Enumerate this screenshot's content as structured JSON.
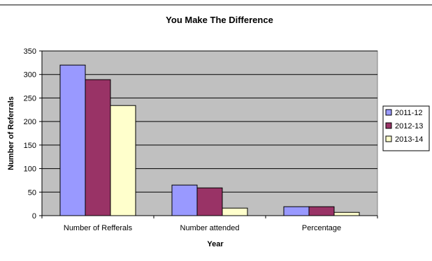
{
  "chart_data": {
    "type": "bar",
    "title": "You Make The Difference",
    "xlabel": "Year",
    "ylabel": "Number of Referrals",
    "categories": [
      "Number of Refferals",
      "Number attended",
      "Percentage"
    ],
    "series": [
      {
        "name": "2011-12",
        "values": [
          320,
          65,
          19
        ],
        "color": "#9999ff"
      },
      {
        "name": "2012-13",
        "values": [
          289,
          59,
          19
        ],
        "color": "#993366"
      },
      {
        "name": "2013-14",
        "values": [
          234,
          16,
          7
        ],
        "color": "#ffffcc"
      }
    ],
    "ylim": [
      0,
      350
    ],
    "yticks": [
      0,
      50,
      100,
      150,
      200,
      250,
      300,
      350
    ],
    "grid": true,
    "plot_background": "#c0c0c0",
    "legend": "right"
  }
}
